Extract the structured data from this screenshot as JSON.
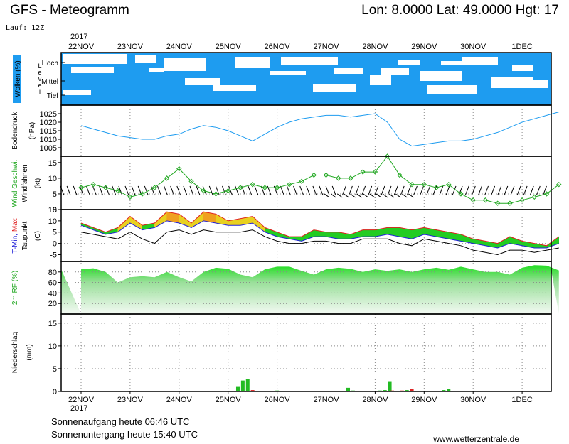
{
  "header": {
    "title": "GFS - Meteogramm",
    "coords": "Lon: 8.0000  Lat: 49.0000  Hgt: 17",
    "run": "Lauf: 12Z"
  },
  "x_axis": {
    "year": "2017",
    "days": [
      "22NOV",
      "23NOV",
      "24NOV",
      "25NOV",
      "26NOV",
      "27NOV",
      "28NOV",
      "29NOV",
      "30NOV",
      "1DEC"
    ]
  },
  "panels": {
    "clouds": {
      "label": "Wolken (%)",
      "level_label": "Level",
      "levels": [
        "Hoch",
        "Mittel",
        "Tief"
      ]
    },
    "pressure": {
      "label": "Bodendruck",
      "unit": "(hPa)"
    },
    "wind": {
      "label": "Wind Geschwi.",
      "label2": "Windfahnen",
      "unit": "(kt)"
    },
    "temp": {
      "label_a": "T-Min,",
      "label_b": "Max",
      "label2": "Taupunkt",
      "unit": "(C)"
    },
    "humidity": {
      "label": "2m RF (%)"
    },
    "precip": {
      "label": "Niederschlag",
      "unit": "(mm)"
    }
  },
  "footer": {
    "sunrise": "Sonnenaufgang heute 06:46 UTC",
    "sunset": "Sonnenuntergang heute 15:40 UTC",
    "site": "www.wetterzentrale.de"
  },
  "colors": {
    "cloud_blue": "#1e9cf0",
    "pressure_line": "#1e9cf0",
    "wind_green": "#22a822",
    "temp_max_red": "#e02020",
    "temp_min_blue": "#2020d8",
    "fill_green": "#22cc22",
    "fill_yellow": "#e8d020",
    "fill_orange": "#f0a020",
    "precip_green": "#22bb22",
    "precip_red": "#dd2222"
  },
  "chart_data": [
    {
      "type": "line",
      "name": "Bodendruck",
      "ylim": [
        1000,
        1030
      ],
      "yticks": [
        1005,
        1010,
        1015,
        1020,
        1025
      ],
      "x_day": [
        0,
        0.25,
        0.5,
        0.75,
        1,
        1.25,
        1.5,
        1.75,
        2,
        2.25,
        2.5,
        2.75,
        3,
        3.25,
        3.5,
        3.75,
        4,
        4.25,
        4.5,
        4.75,
        5,
        5.25,
        5.5,
        5.75,
        6,
        6.25,
        6.5,
        6.75,
        7,
        7.25,
        7.5,
        7.75,
        8,
        8.25,
        8.5,
        8.75,
        9,
        9.25,
        9.5,
        9.75
      ],
      "values": [
        1018,
        1016,
        1014,
        1012,
        1011,
        1010,
        1010,
        1012,
        1013,
        1016,
        1018,
        1017,
        1015,
        1012,
        1009,
        1013,
        1017,
        1020,
        1022,
        1023,
        1024,
        1024,
        1023,
        1024,
        1025,
        1020,
        1010,
        1006,
        1007,
        1008,
        1009,
        1009,
        1010,
        1012,
        1014,
        1017,
        1020,
        1022,
        1024,
        1026
      ]
    },
    {
      "type": "line",
      "name": "Wind Geschwi.",
      "ylim": [
        0,
        17
      ],
      "yticks": [
        0,
        5,
        10,
        15
      ],
      "x_day": [
        0,
        0.25,
        0.5,
        0.75,
        1,
        1.25,
        1.5,
        1.75,
        2,
        2.25,
        2.5,
        2.75,
        3,
        3.25,
        3.5,
        3.75,
        4,
        4.25,
        4.5,
        4.75,
        5,
        5.25,
        5.5,
        5.75,
        6,
        6.25,
        6.5,
        6.75,
        7,
        7.25,
        7.5,
        7.75,
        8,
        8.25,
        8.5,
        8.75,
        9,
        9.25,
        9.5,
        9.75
      ],
      "values": [
        7,
        8,
        7,
        6,
        4,
        5,
        7,
        10,
        13,
        9,
        6,
        5,
        6,
        7,
        8,
        7,
        7,
        8,
        9,
        11,
        11,
        10,
        10,
        12,
        12,
        17,
        11,
        8,
        8,
        7,
        8,
        5,
        3,
        3,
        2,
        2,
        3,
        4,
        5,
        8
      ]
    },
    {
      "type": "line",
      "name": "T-Min, Max / Taupunkt",
      "ylim": [
        -8,
        15
      ],
      "yticks": [
        -5,
        0,
        5,
        10,
        15
      ],
      "x_day": [
        0,
        0.25,
        0.5,
        0.75,
        1,
        1.25,
        1.5,
        1.75,
        2,
        2.25,
        2.5,
        2.75,
        3,
        3.25,
        3.5,
        3.75,
        4,
        4.25,
        4.5,
        4.75,
        5,
        5.25,
        5.5,
        5.75,
        6,
        6.25,
        6.5,
        6.75,
        7,
        7.25,
        7.5,
        7.75,
        8,
        8.25,
        8.5,
        8.75,
        9,
        9.25,
        9.5,
        9.75
      ],
      "series": [
        {
          "name": "Max",
          "values": [
            9,
            7,
            5,
            7,
            12,
            8,
            9,
            14,
            13,
            9,
            14,
            13,
            10,
            11,
            12,
            7,
            5,
            3,
            3,
            6,
            5,
            5,
            4,
            6,
            6,
            7,
            7,
            6,
            7,
            6,
            5,
            4,
            2,
            1,
            0,
            3,
            1,
            0,
            -1,
            3
          ]
        },
        {
          "name": "Min",
          "values": [
            8,
            6,
            4,
            5,
            9,
            6,
            7,
            10,
            9,
            7,
            10,
            9,
            8,
            8,
            9,
            5,
            3,
            2,
            1,
            3,
            3,
            2,
            2,
            3,
            3,
            4,
            3,
            2,
            4,
            3,
            2,
            1,
            0,
            -1,
            -2,
            0,
            -1,
            -2,
            -2,
            0
          ]
        },
        {
          "name": "Taupunkt",
          "values": [
            5,
            4,
            3,
            2,
            5,
            2,
            0,
            5,
            6,
            4,
            6,
            5,
            5,
            5,
            6,
            3,
            1,
            0,
            0,
            1,
            1,
            0,
            0,
            2,
            2,
            2,
            0,
            -1,
            2,
            1,
            0,
            -1,
            -3,
            -4,
            -5,
            -3,
            -3,
            -4,
            -3,
            -2
          ]
        }
      ]
    },
    {
      "type": "area",
      "name": "2m RF (%)",
      "ylim": [
        0,
        100
      ],
      "yticks": [
        20,
        40,
        60,
        80
      ],
      "x_day": [
        0,
        0.25,
        0.5,
        0.75,
        1,
        1.25,
        1.5,
        1.75,
        2,
        2.25,
        2.5,
        2.75,
        3,
        3.25,
        3.5,
        3.75,
        4,
        4.25,
        4.5,
        4.75,
        5,
        5.25,
        5.5,
        5.75,
        6,
        6.25,
        6.5,
        6.75,
        7,
        7.25,
        7.5,
        7.75,
        8,
        8.25,
        8.5,
        8.75,
        9,
        9.25,
        9.5,
        9.75
      ],
      "values": [
        85,
        87,
        80,
        60,
        70,
        72,
        70,
        80,
        70,
        62,
        80,
        88,
        86,
        75,
        70,
        85,
        90,
        90,
        82,
        75,
        85,
        88,
        86,
        80,
        85,
        82,
        85,
        80,
        85,
        88,
        84,
        90,
        85,
        80,
        80,
        75,
        88,
        93,
        92,
        83
      ]
    },
    {
      "type": "bar",
      "name": "Niederschlag",
      "ylim": [
        0,
        17
      ],
      "yticks": [
        0,
        5,
        10,
        15
      ],
      "x_day": [
        3.2,
        3.3,
        3.4,
        3.5,
        4.0,
        5.45,
        5.55,
        6.1,
        6.2,
        6.3,
        6.35,
        6.55,
        6.65,
        6.75,
        7.4,
        7.5
      ],
      "values": [
        1.0,
        2.4,
        2.8,
        0.3,
        0.2,
        0.8,
        0.2,
        0.2,
        0.3,
        2.1,
        0.2,
        0.2,
        0.3,
        0.5,
        0.3,
        0.6
      ],
      "colors": [
        "#22bb22",
        "#22bb22",
        "#22bb22",
        "#dd2222",
        "#22bb22",
        "#22bb22",
        "#22bb22",
        "#22bb22",
        "#22bb22",
        "#22bb22",
        "#dd2222",
        "#dd2222",
        "#22bb22",
        "#dd2222",
        "#22bb22",
        "#22bb22"
      ]
    }
  ]
}
